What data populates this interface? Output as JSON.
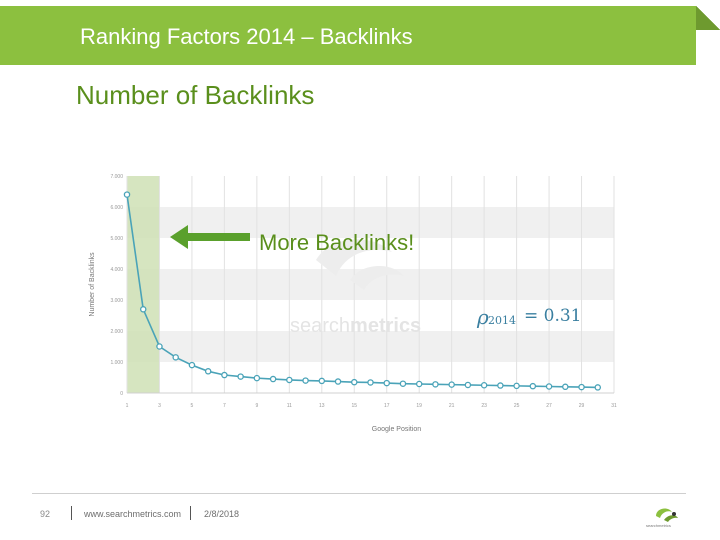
{
  "header": {
    "title": "Ranking Factors 2014 – Backlinks"
  },
  "slide": {
    "subtitle": "Number of Backlinks"
  },
  "annotation": {
    "text": "More Backlinks!",
    "arrow_color": "#5aa02c"
  },
  "correlation": {
    "symbol": "ρ",
    "subscript": "2014",
    "equals": "= 0.31"
  },
  "watermark": {
    "light": "search",
    "bold": "metrics"
  },
  "footer": {
    "page": "92",
    "url": "www.searchmetrics.com",
    "date": "2/8/2018",
    "logo_text": "searchmetrics"
  },
  "colors": {
    "header_bg": "#8cc03f",
    "subtitle": "#5a8f1c",
    "line": "#4aa3b8",
    "highlight": "#cfe0b5",
    "band": "#f0f0f0"
  },
  "chart_data": {
    "type": "line",
    "title": "",
    "xlabel": "Google Position",
    "ylabel": "Number of Backlinks",
    "ylim": [
      0,
      7000
    ],
    "yticks": [
      0,
      1000,
      2000,
      3000,
      4000,
      5000,
      6000,
      7000
    ],
    "ytick_labels": [
      "0",
      "1.000",
      "2.000",
      "3.000",
      "4.000",
      "5.000",
      "6.000",
      "7.000"
    ],
    "xlim": [
      1,
      31
    ],
    "xticks": [
      1,
      3,
      5,
      7,
      9,
      11,
      13,
      15,
      17,
      19,
      21,
      23,
      25,
      27,
      29,
      31
    ],
    "grid": true,
    "highlight_range": [
      1,
      3
    ],
    "series": [
      {
        "x": [
          1,
          2,
          3,
          4,
          5,
          6,
          7,
          8,
          9,
          10,
          11,
          12,
          13,
          14,
          15,
          16,
          17,
          18,
          19,
          20,
          21,
          22,
          23,
          24,
          25,
          26,
          27,
          28,
          29,
          30
        ],
        "values": [
          6400,
          2700,
          1500,
          1150,
          900,
          700,
          580,
          530,
          480,
          450,
          420,
          400,
          390,
          370,
          350,
          340,
          320,
          300,
          290,
          280,
          270,
          260,
          250,
          240,
          230,
          220,
          210,
          200,
          190,
          180
        ]
      }
    ]
  }
}
